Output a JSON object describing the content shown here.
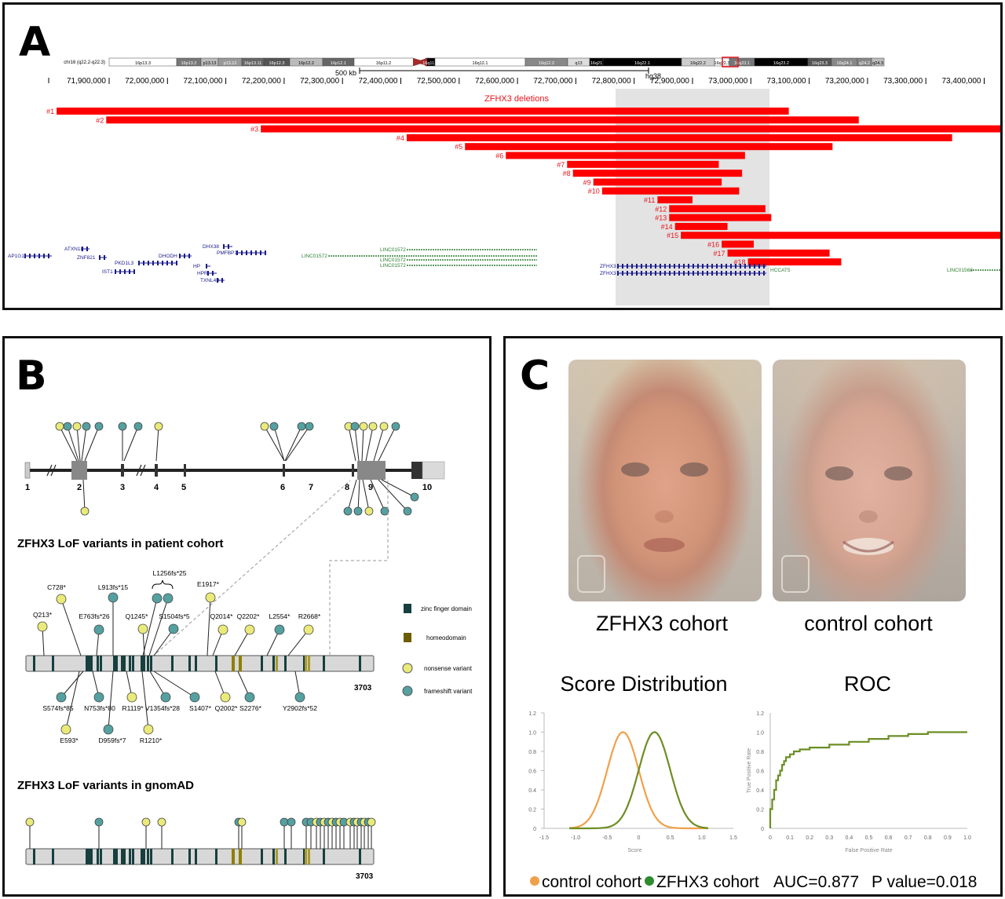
{
  "panelA": {
    "label": "A",
    "ideogram_label": "chr16 (q22.2-q22.3)",
    "bands": [
      "16p13.3",
      "16p13.2",
      "p13.13",
      "p13.12",
      "16p13.11",
      "16p12.3",
      "16p12.2",
      "16p12.1",
      "16p11.2",
      "16q11.2",
      "16q12.1",
      "16q12.2",
      "q13",
      "16q21",
      "16q22.1",
      "16q22.2",
      "16q22.3",
      "16q23.1",
      "16q23.2",
      "16q23.3",
      "16q24.1",
      "q24.2",
      "q24.3"
    ],
    "scale_label": "500 kb",
    "assembly": "hg38",
    "coords": [
      "71,900,000",
      "72,000,000",
      "72,100,000",
      "72,200,000",
      "72,300,000",
      "72,400,000",
      "72,500,000",
      "72,600,000",
      "72,700,000",
      "72,800,000",
      "72,900,000",
      "73,000,000",
      "73,100,000",
      "73,200,000",
      "73,300,000",
      "73,400,000"
    ],
    "track_title": "ZFHX3 deletions",
    "deletions": [
      {
        "label": "#1",
        "start": 71810000,
        "end": 73065000
      },
      {
        "label": "#2",
        "start": 71895000,
        "end": 73185000
      },
      {
        "label": "#3",
        "start": 72160000,
        "end": 73490000
      },
      {
        "label": "#4",
        "start": 72410000,
        "end": 73345000
      },
      {
        "label": "#5",
        "start": 72510000,
        "end": 73140000
      },
      {
        "label": "#6",
        "start": 72580000,
        "end": 72990000
      },
      {
        "label": "#7",
        "start": 72685000,
        "end": 72945000
      },
      {
        "label": "#8",
        "start": 72695000,
        "end": 72985000
      },
      {
        "label": "#9",
        "start": 72730000,
        "end": 72950000
      },
      {
        "label": "#10",
        "start": 72745000,
        "end": 72980000
      },
      {
        "label": "#11",
        "start": 72840000,
        "end": 72900000
      },
      {
        "label": "#12",
        "start": 72860000,
        "end": 73025000
      },
      {
        "label": "#13",
        "start": 72860000,
        "end": 73035000
      },
      {
        "label": "#14",
        "start": 72870000,
        "end": 72960000
      },
      {
        "label": "#15",
        "start": 72880000,
        "end": 73490000
      },
      {
        "label": "#16",
        "start": 72950000,
        "end": 73005000
      },
      {
        "label": "#17",
        "start": 72960000,
        "end": 73135000
      },
      {
        "label": "#18",
        "start": 72995000,
        "end": 73155000
      }
    ],
    "genes_blue": [
      "AP1G1",
      "ATXN1L",
      "ZNF821",
      "IST1",
      "PKD1L3",
      "DHODH",
      "HP",
      "HPR",
      "TXNL4B",
      "DHX38",
      "PMFBP1",
      "ZFHX3",
      "ZFHX3"
    ],
    "genes_green": [
      "LINC01572",
      "LINC01572",
      "LINC01572",
      "LINC01572",
      "HCCAT5",
      "LINC01568"
    ]
  },
  "panelB": {
    "label": "B",
    "exons": [
      "1",
      "2",
      "3",
      "4",
      "5",
      "6",
      "7",
      "8",
      "9",
      "10"
    ],
    "patient_title": "ZFHX3 LoF variants in patient cohort",
    "gnomad_title": "ZFHX3 LoF variants in gnomAD",
    "protein_length": "3703",
    "legend": [
      "zinc finger domain",
      "homeodomain",
      "nonsense variant",
      "frameshift variant"
    ],
    "variants_above": [
      "C728*",
      "L913fs*15",
      "L1256fs*25",
      "E1917*",
      "Q213*",
      "E763fs*26",
      "Q1245*",
      "S1504fs*5",
      "Q2014*",
      "Q2202*",
      "L2554*",
      "R2668*"
    ],
    "variants_below": [
      "S574fs*85",
      "N753fs*80",
      "R1119*",
      "V1354fs*28",
      "S1407*",
      "Q2002*",
      "S2276*",
      "Y2902fs*52",
      "E593*",
      "D959fs*7",
      "R1210*"
    ]
  },
  "panelC": {
    "label": "C",
    "face1_caption": "ZFHX3 cohort",
    "face2_caption": "control cohort",
    "dist_title": "Score Distribution",
    "roc_title": "ROC",
    "legend_control": "control cohort",
    "legend_zfhx3": "ZFHX3 cohort",
    "auc": "AUC=0.877",
    "pvalue": "P value=0.018",
    "colors": {
      "control": "#f0a04b",
      "zfhx3": "#6b8e23"
    }
  },
  "chart_data": [
    {
      "type": "line",
      "title": "Score Distribution",
      "xlabel": "Score",
      "ylabel": "",
      "x_ticks": [
        "-1.5",
        "-1.0",
        "-0.5",
        "0",
        "0.5",
        "1.0",
        "1.5"
      ],
      "y_ticks": [
        "0",
        "0.2",
        "0.4",
        "0.6",
        "0.8",
        "1.0",
        "1.2"
      ],
      "xlim": [
        -1.5,
        1.5
      ],
      "ylim": [
        0,
        1.2
      ],
      "series": [
        {
          "name": "control cohort",
          "mean": -0.25,
          "sd": 0.25
        },
        {
          "name": "ZFHX3 cohort",
          "mean": 0.25,
          "sd": 0.25
        }
      ]
    },
    {
      "type": "line",
      "title": "ROC",
      "xlabel": "False Positive Rate",
      "ylabel": "True Positive Rate",
      "x_ticks": [
        "0",
        "0.1",
        "0.2",
        "0.3",
        "0.4",
        "0.5",
        "0.6",
        "0.7",
        "0.8",
        "0.9",
        "1.0"
      ],
      "y_ticks": [
        "0",
        "0.2",
        "0.4",
        "0.6",
        "0.8",
        "1.0",
        "1.2"
      ],
      "xlim": [
        0,
        1
      ],
      "ylim": [
        0,
        1.2
      ],
      "fpr": [
        0,
        0,
        0.01,
        0.01,
        0.02,
        0.02,
        0.03,
        0.03,
        0.04,
        0.04,
        0.05,
        0.05,
        0.06,
        0.06,
        0.07,
        0.07,
        0.08,
        0.08,
        0.1,
        0.1,
        0.12,
        0.12,
        0.15,
        0.15,
        0.2,
        0.2,
        0.3,
        0.3,
        0.4,
        0.4,
        0.5,
        0.5,
        0.6,
        0.6,
        0.7,
        0.7,
        0.8,
        0.8,
        1.0
      ],
      "tpr": [
        0,
        0.2,
        0.2,
        0.3,
        0.3,
        0.4,
        0.4,
        0.5,
        0.5,
        0.55,
        0.55,
        0.6,
        0.6,
        0.66,
        0.66,
        0.7,
        0.7,
        0.74,
        0.74,
        0.77,
        0.77,
        0.8,
        0.8,
        0.82,
        0.82,
        0.84,
        0.84,
        0.87,
        0.87,
        0.9,
        0.9,
        0.93,
        0.93,
        0.96,
        0.96,
        0.98,
        0.98,
        1.0,
        1.0
      ]
    }
  ]
}
